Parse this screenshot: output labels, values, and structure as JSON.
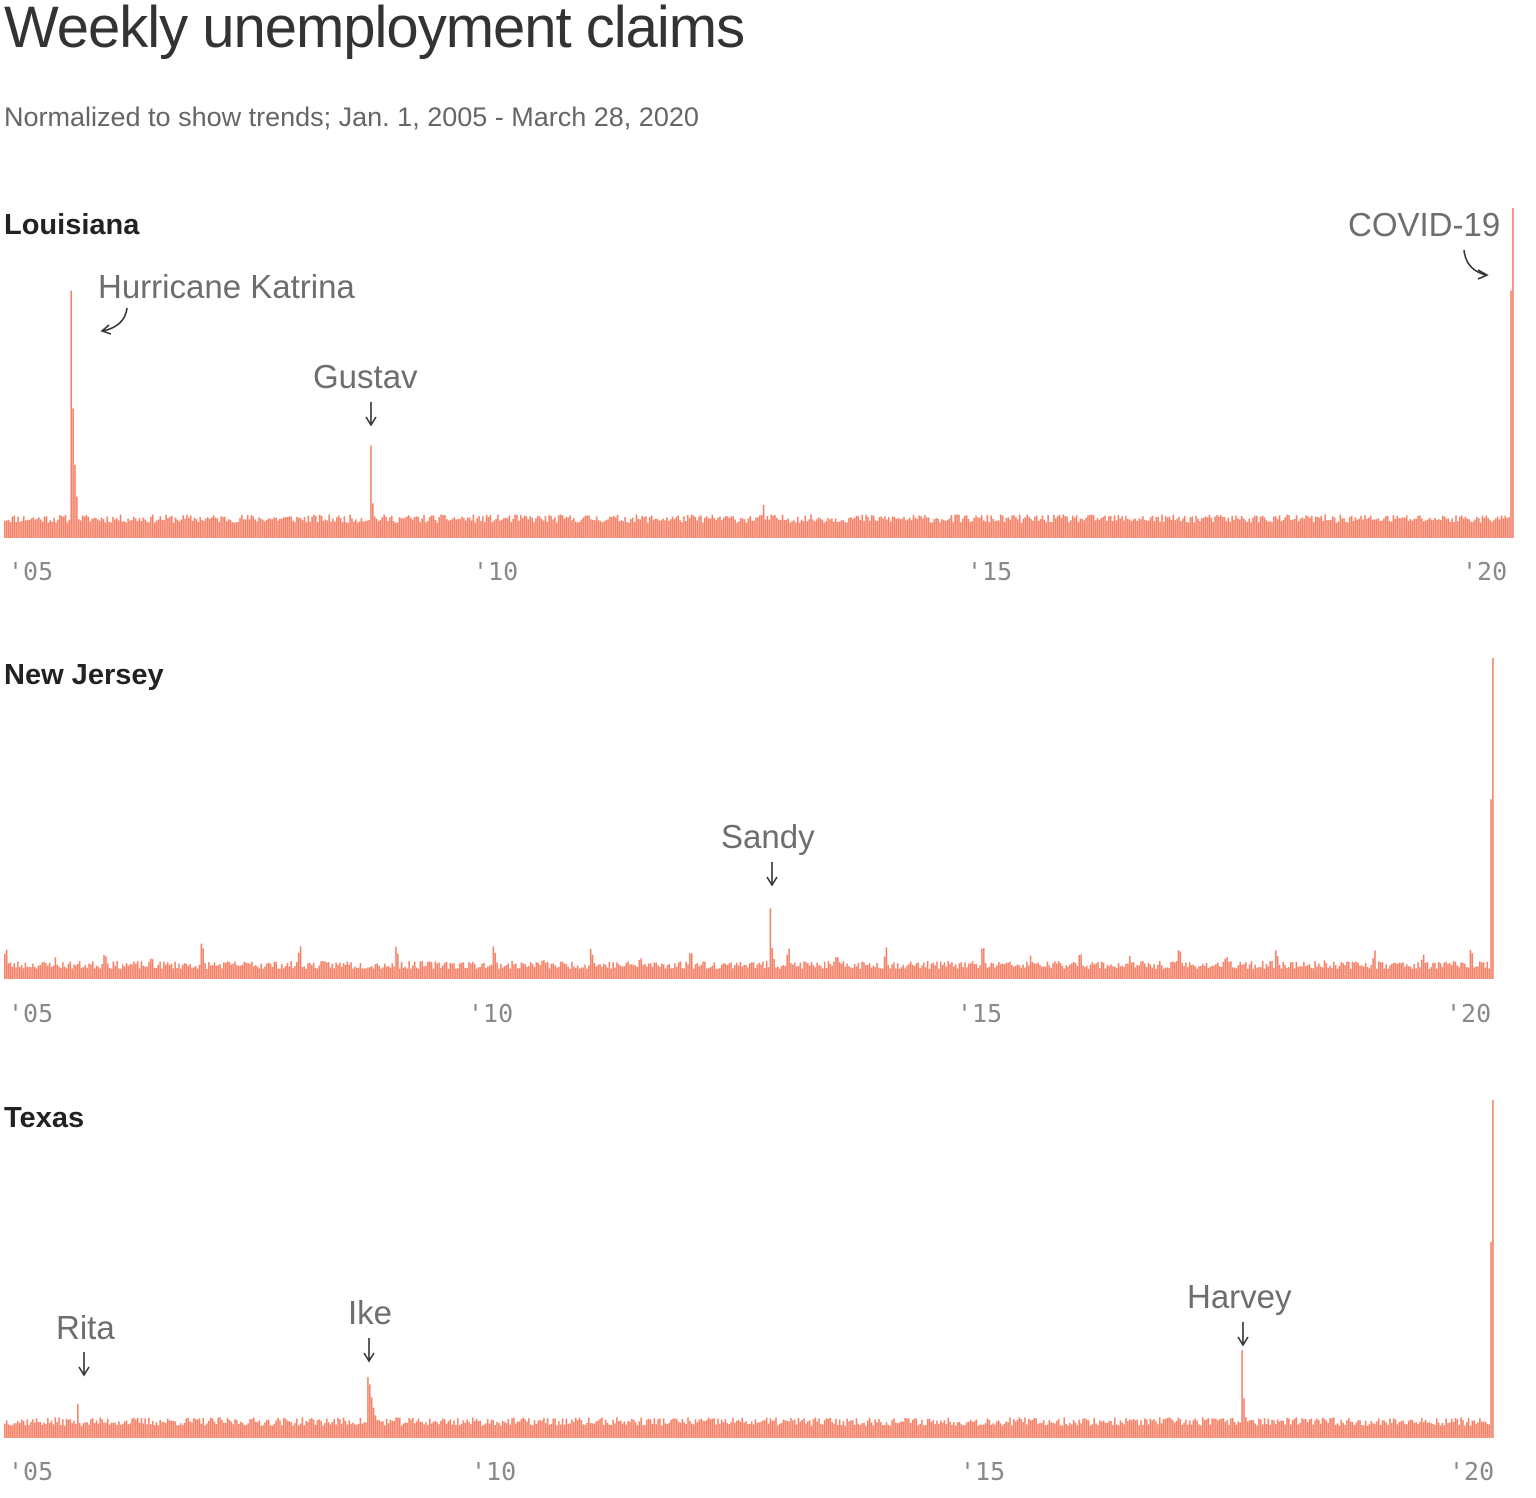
{
  "title": "Weekly unemployment claims",
  "subtitle": "Normalized to show trends; Jan. 1, 2005 - March 28, 2020",
  "colors": {
    "bar": "#f4836a",
    "text": "#333333",
    "annotation": "#6e6e6e",
    "tick": "#8a8a8a"
  },
  "chart_data": [
    {
      "type": "bar",
      "title": "Louisiana",
      "x_range": [
        "2005-01-01",
        "2020-03-28"
      ],
      "xticks": [
        "'05",
        "'10",
        "'15",
        "'20"
      ],
      "y_normalized": true,
      "baseline": 0.055,
      "noise": 0.025,
      "seed": 11,
      "events": [
        {
          "date": "2005-09-03",
          "value": 0.75,
          "decay": 0.55,
          "tail": 6
        },
        {
          "date": "2008-09-13",
          "value": 0.28,
          "decay": 0.5,
          "tail": 3
        },
        {
          "date": "2012-09-01",
          "value": 0.1,
          "decay": 0.2,
          "tail": 1
        },
        {
          "date": "2020-03-21",
          "value": 0.75,
          "decay": 0,
          "tail": 0
        },
        {
          "date": "2020-03-28",
          "value": 1.0,
          "decay": 0,
          "tail": 0
        }
      ],
      "annotations": [
        {
          "label": "Hurricane Katrina",
          "date": "2005-09-03"
        },
        {
          "label": "Gustav",
          "date": "2008-09-13"
        },
        {
          "label": "COVID-19",
          "date": "2020-03-28"
        }
      ]
    },
    {
      "type": "bar",
      "title": "New Jersey",
      "x_range": [
        "2005-01-01",
        "2020-03-28"
      ],
      "xticks": [
        "'05",
        "'10",
        "'15",
        "'20"
      ],
      "y_normalized": true,
      "baseline": 0.04,
      "noise": 0.025,
      "seed": 23,
      "seasonal_spikes": 0.05,
      "events": [
        {
          "date": "2012-11-03",
          "value": 0.22,
          "decay": 0.5,
          "tail": 3
        },
        {
          "date": "2020-03-21",
          "value": 0.56,
          "decay": 0,
          "tail": 0
        },
        {
          "date": "2020-03-28",
          "value": 1.0,
          "decay": 0,
          "tail": 0
        }
      ],
      "annotations": [
        {
          "label": "Sandy",
          "date": "2012-11-03"
        }
      ]
    },
    {
      "type": "bar",
      "title": "Texas",
      "x_range": [
        "2005-01-01",
        "2020-03-28"
      ],
      "xticks": [
        "'05",
        "'10",
        "'15",
        "'20"
      ],
      "y_normalized": true,
      "baseline": 0.045,
      "noise": 0.025,
      "seed": 37,
      "events": [
        {
          "date": "2005-10-01",
          "value": 0.1,
          "decay": 0.4,
          "tail": 2
        },
        {
          "date": "2008-09-20",
          "value": 0.18,
          "decay": 0.75,
          "tail": 8
        },
        {
          "date": "2017-09-02",
          "value": 0.26,
          "decay": 0.55,
          "tail": 3
        },
        {
          "date": "2020-03-21",
          "value": 0.58,
          "decay": 0,
          "tail": 0
        },
        {
          "date": "2020-03-28",
          "value": 1.0,
          "decay": 0,
          "tail": 0
        }
      ],
      "annotations": [
        {
          "label": "Rita",
          "date": "2005-10-01"
        },
        {
          "label": "Ike",
          "date": "2008-09-20"
        },
        {
          "label": "Harvey",
          "date": "2017-09-02"
        }
      ]
    }
  ]
}
